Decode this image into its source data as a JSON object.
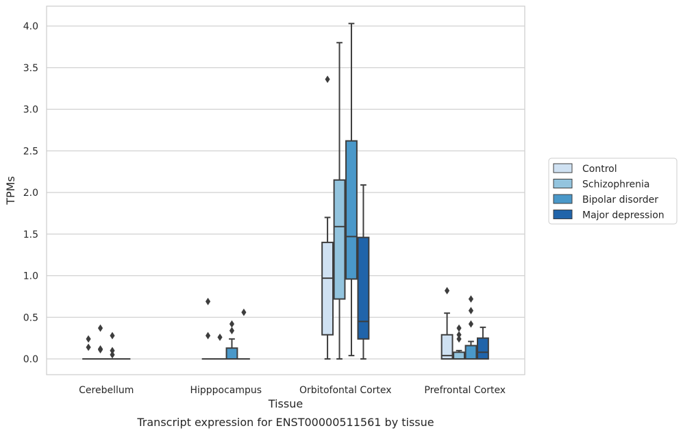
{
  "chart_data": {
    "type": "box",
    "title": "Transcript expression for ENST00000511561 by tissue",
    "xlabel": "Tissue",
    "ylabel": "TPMs",
    "ylim": [
      -0.2,
      4.23
    ],
    "yticks": [
      "0.0",
      "0.5",
      "1.0",
      "1.5",
      "2.0",
      "2.5",
      "3.0",
      "3.5",
      "4.0"
    ],
    "grid": "y",
    "legend_position": "right",
    "categories": [
      "Cerebellum",
      "Hipppocampus",
      "Orbitofontal Cortex",
      "Prefrontal Cortex"
    ],
    "series": [
      {
        "name": "Control",
        "color": "#cfe1f2",
        "boxes": [
          {
            "min": 0,
            "q1": 0,
            "median": 0,
            "q3": 0,
            "max": 0,
            "outliers": [
              0.24,
              0.14
            ]
          },
          {
            "min": 0,
            "q1": 0,
            "median": 0,
            "q3": 0,
            "max": 0,
            "outliers": [
              0.69,
              0.28
            ]
          },
          {
            "min": 0,
            "q1": 0.29,
            "median": 0.97,
            "q3": 1.4,
            "max": 1.7,
            "outliers": [
              3.36
            ]
          },
          {
            "min": 0,
            "q1": 0,
            "median": 0.04,
            "q3": 0.29,
            "max": 0.55,
            "outliers": [
              0.82
            ]
          }
        ]
      },
      {
        "name": "Schizophrenia",
        "color": "#93c4de",
        "boxes": [
          {
            "min": 0,
            "q1": 0,
            "median": 0,
            "q3": 0,
            "max": 0,
            "outliers": [
              0.37,
              0.12,
              0.11
            ]
          },
          {
            "min": 0,
            "q1": 0,
            "median": 0,
            "q3": 0,
            "max": 0,
            "outliers": [
              0.26
            ]
          },
          {
            "min": 0,
            "q1": 0.72,
            "median": 1.59,
            "q3": 2.15,
            "max": 3.8,
            "outliers": []
          },
          {
            "min": 0,
            "q1": 0,
            "median": 0,
            "q3": 0.08,
            "max": 0.1,
            "outliers": [
              0.37,
              0.29,
              0.24
            ]
          }
        ]
      },
      {
        "name": "Bipolar disorder",
        "color": "#4a98c9",
        "boxes": [
          {
            "min": 0,
            "q1": 0,
            "median": 0,
            "q3": 0,
            "max": 0,
            "outliers": [
              0.28,
              0.1,
              0.05
            ]
          },
          {
            "min": 0,
            "q1": 0,
            "median": 0,
            "q3": 0.13,
            "max": 0.24,
            "outliers": [
              0.42,
              0.34
            ]
          },
          {
            "min": 0.04,
            "q1": 0.96,
            "median": 1.47,
            "q3": 2.62,
            "max": 4.03,
            "outliers": []
          },
          {
            "min": 0,
            "q1": 0,
            "median": 0,
            "q3": 0.16,
            "max": 0.21,
            "outliers": [
              0.72,
              0.58,
              0.42
            ]
          }
        ]
      },
      {
        "name": "Major depression",
        "color": "#2064aa",
        "boxes": [
          {
            "min": 0,
            "q1": 0,
            "median": 0,
            "q3": 0,
            "max": 0,
            "outliers": []
          },
          {
            "min": 0,
            "q1": 0,
            "median": 0,
            "q3": 0,
            "max": 0,
            "outliers": [
              0.56
            ]
          },
          {
            "min": 0,
            "q1": 0.24,
            "median": 0.45,
            "q3": 1.46,
            "max": 2.09,
            "outliers": []
          },
          {
            "min": 0,
            "q1": 0,
            "median": 0.08,
            "q3": 0.25,
            "max": 0.38,
            "outliers": []
          }
        ]
      }
    ]
  }
}
